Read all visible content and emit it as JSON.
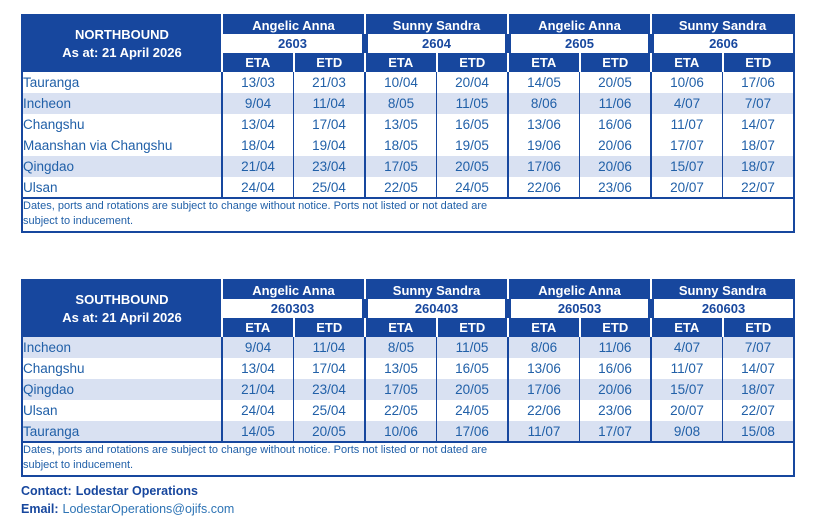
{
  "page": {
    "colors": {
      "header_blue": "#17479E",
      "row_shade": "#D9E1F2",
      "text_blue": "#2160A8",
      "email_blue": "#2E74B5"
    }
  },
  "tables": [
    {
      "id": "northbound",
      "title": "NORTHBOUND",
      "as_at": "As at: 21 April 2026",
      "col_headers": [
        "ETA",
        "ETD"
      ],
      "vessels": [
        {
          "name": "Angelic Anna",
          "voyage": "2603"
        },
        {
          "name": "Sunny Sandra",
          "voyage": "2604"
        },
        {
          "name": "Angelic Anna",
          "voyage": "2605"
        },
        {
          "name": "Sunny Sandra",
          "voyage": "2606"
        }
      ],
      "rows": [
        {
          "port": "Tauranga",
          "shaded": false,
          "dates": [
            "13/03",
            "21/03",
            "10/04",
            "20/04",
            "14/05",
            "20/05",
            "10/06",
            "17/06"
          ]
        },
        {
          "port": "Incheon",
          "shaded": true,
          "dates": [
            "9/04",
            "11/04",
            "8/05",
            "11/05",
            "8/06",
            "11/06",
            "4/07",
            "7/07"
          ]
        },
        {
          "port": "Changshu",
          "shaded": false,
          "dates": [
            "13/04",
            "17/04",
            "13/05",
            "16/05",
            "13/06",
            "16/06",
            "11/07",
            "14/07"
          ]
        },
        {
          "port": "Maanshan via Changshu",
          "shaded": false,
          "dates": [
            "18/04",
            "19/04",
            "18/05",
            "19/05",
            "19/06",
            "20/06",
            "17/07",
            "18/07"
          ]
        },
        {
          "port": "Qingdao",
          "shaded": true,
          "dates": [
            "21/04",
            "23/04",
            "17/05",
            "20/05",
            "17/06",
            "20/06",
            "15/07",
            "18/07"
          ]
        },
        {
          "port": "Ulsan",
          "shaded": false,
          "dates": [
            "24/04",
            "25/04",
            "22/05",
            "24/05",
            "22/06",
            "23/06",
            "20/07",
            "22/07"
          ]
        }
      ],
      "disclaimer": [
        "Dates, ports and rotations are subject to change without notice. Ports not listed or not dated are",
        "subject to inducement."
      ]
    },
    {
      "id": "southbound",
      "title": "SOUTHBOUND",
      "as_at": "As at: 21 April 2026",
      "col_headers": [
        "ETA",
        "ETD"
      ],
      "vessels": [
        {
          "name": "Angelic Anna",
          "voyage": "260303"
        },
        {
          "name": "Sunny Sandra",
          "voyage": "260403"
        },
        {
          "name": "Angelic Anna",
          "voyage": "260503"
        },
        {
          "name": "Sunny Sandra",
          "voyage": "260603"
        }
      ],
      "rows": [
        {
          "port": "Incheon",
          "shaded": true,
          "dates": [
            "9/04",
            "11/04",
            "8/05",
            "11/05",
            "8/06",
            "11/06",
            "4/07",
            "7/07"
          ]
        },
        {
          "port": "Changshu",
          "shaded": false,
          "dates": [
            "13/04",
            "17/04",
            "13/05",
            "16/05",
            "13/06",
            "16/06",
            "11/07",
            "14/07"
          ]
        },
        {
          "port": "Qingdao",
          "shaded": true,
          "dates": [
            "21/04",
            "23/04",
            "17/05",
            "20/05",
            "17/06",
            "20/06",
            "15/07",
            "18/07"
          ]
        },
        {
          "port": "Ulsan",
          "shaded": false,
          "dates": [
            "24/04",
            "25/04",
            "22/05",
            "24/05",
            "22/06",
            "23/06",
            "20/07",
            "22/07"
          ]
        },
        {
          "port": "Tauranga",
          "shaded": true,
          "dates": [
            "14/05",
            "20/05",
            "10/06",
            "17/06",
            "11/07",
            "17/07",
            "9/08",
            "15/08"
          ]
        }
      ],
      "disclaimer": [
        "Dates, ports and rotations are subject to change without notice. Ports not listed or not dated are",
        "subject to inducement."
      ]
    }
  ],
  "footer": {
    "contact_label": "Contact:",
    "contact_value": "Lodestar Operations",
    "email_label": "Email:",
    "email_value": "LodestarOperations@ojifs.com"
  }
}
